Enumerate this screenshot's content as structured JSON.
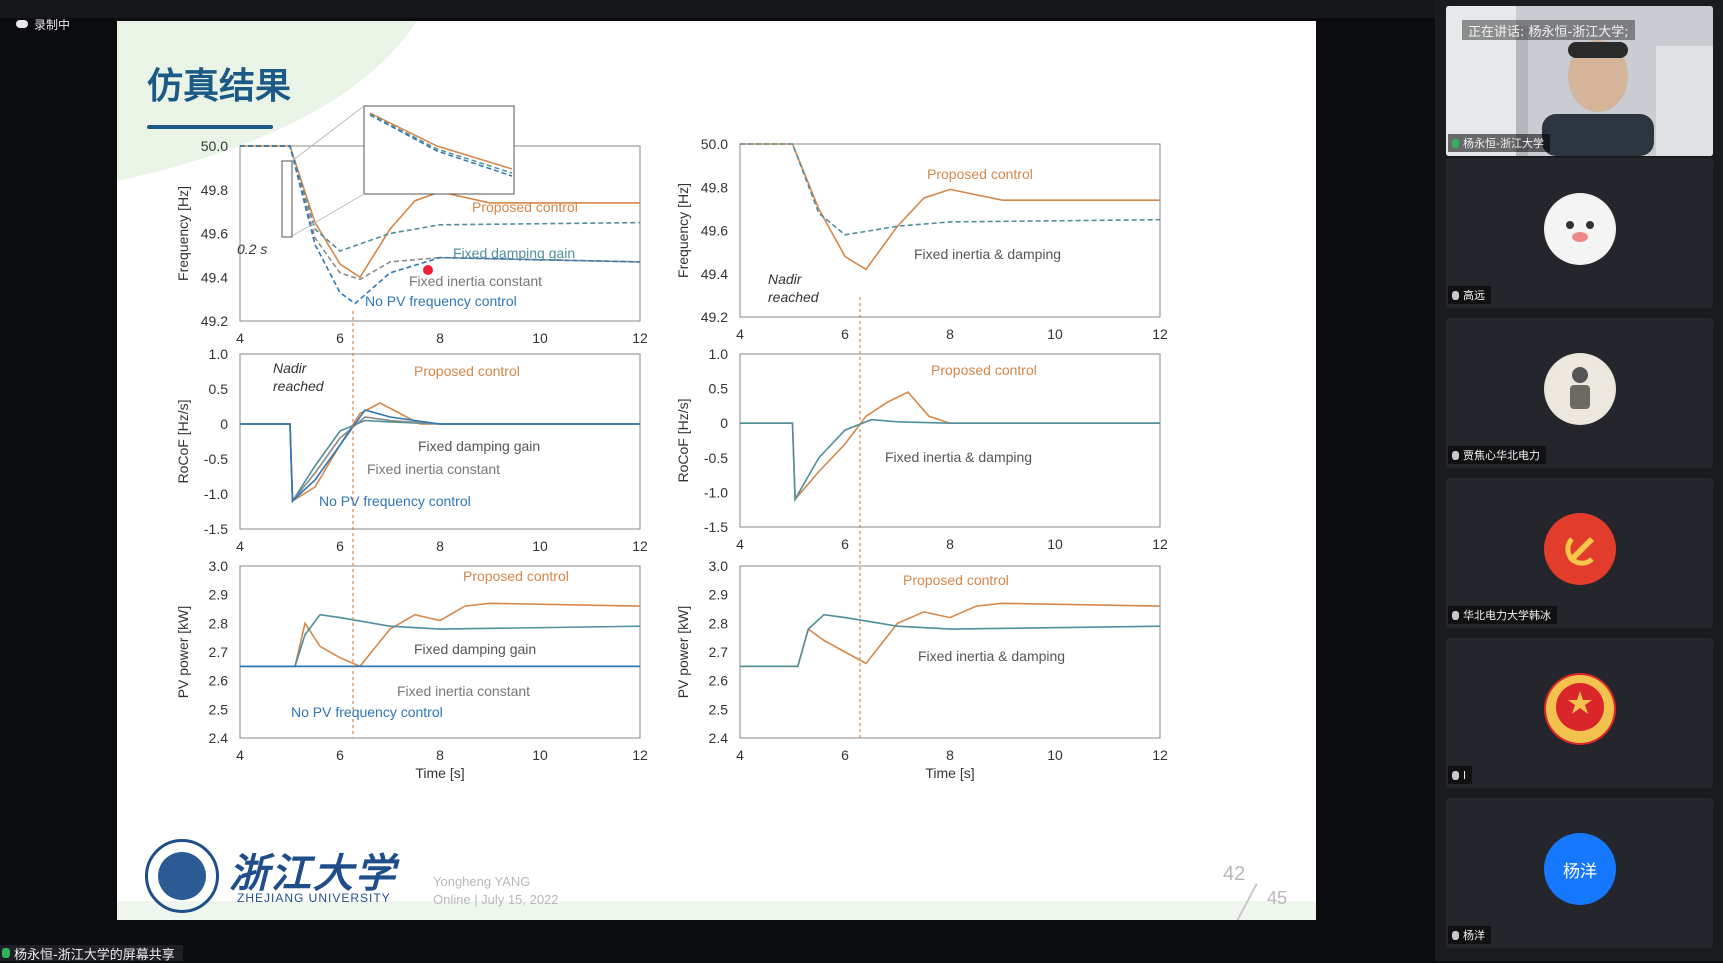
{
  "recording": {
    "label": "录制中"
  },
  "slide": {
    "title": "仿真结果",
    "university_cn": "浙江大学",
    "university_en": "ZHEJIANG UNIVERSITY",
    "author": "Yongheng YANG",
    "event": "Online | July 15, 2022",
    "page": "42",
    "total": "45",
    "left_panel": {
      "freq_ylabel": "Frequency [Hz]",
      "rocof_ylabel": "RoCoF [Hz/s]",
      "pv_ylabel": "PV power [kW]",
      "xlabel": "Time [s]",
      "annot_02s": "0.2 s",
      "nadir_line1": "Nadir",
      "nadir_line2": "reached",
      "proposed": "Proposed control",
      "fixed_damping": "Fixed damping gain",
      "fixed_inertia": "Fixed inertia constant",
      "no_pv": "No PV frequency control"
    },
    "right_panel": {
      "freq_ylabel": "Frequency [Hz]",
      "rocof_ylabel": "RoCoF [Hz/s]",
      "pv_ylabel": "PV power [kW]",
      "xlabel": "Time [s]",
      "nadir_line1": "Nadir",
      "nadir_line2": "reached",
      "proposed": "Proposed control",
      "fixed_both": "Fixed inertia & damping"
    },
    "freq_ticks": [
      "50.0",
      "49.8",
      "49.6",
      "49.4",
      "49.2"
    ],
    "rocof_ticks": [
      "1.0",
      "0.5",
      "0",
      "-0.5",
      "-1.0",
      "-1.5"
    ],
    "pv_ticks": [
      "3.0",
      "2.9",
      "2.8",
      "2.7",
      "2.6",
      "2.5",
      "2.4"
    ],
    "x_ticks": [
      "4",
      "6",
      "8",
      "10",
      "12"
    ]
  },
  "chart_data": [
    {
      "type": "line",
      "title": "",
      "xlabel": "",
      "ylabel": "Frequency [Hz]",
      "xlim": [
        4,
        12
      ],
      "ylim": [
        49.2,
        50.0
      ],
      "series": [
        {
          "name": "Proposed control",
          "x": [
            4,
            5,
            5.5,
            6,
            6.4,
            7,
            7.5,
            8,
            9,
            12
          ],
          "y": [
            50.0,
            50.0,
            49.65,
            49.46,
            49.4,
            49.62,
            49.75,
            49.79,
            49.74,
            49.74
          ]
        },
        {
          "name": "Fixed damping gain",
          "x": [
            4,
            5,
            5.5,
            6,
            6.5,
            7,
            8,
            12
          ],
          "y": [
            50.0,
            50.0,
            49.62,
            49.52,
            49.56,
            49.6,
            49.64,
            49.65
          ]
        },
        {
          "name": "Fixed inertia constant",
          "x": [
            4,
            5,
            5.5,
            6,
            6.4,
            7,
            8,
            12
          ],
          "y": [
            50.0,
            50.0,
            49.58,
            49.42,
            49.39,
            49.47,
            49.49,
            49.47
          ]
        },
        {
          "name": "No PV frequency control",
          "x": [
            4,
            5,
            5.5,
            6,
            6.3,
            7,
            8,
            12
          ],
          "y": [
            50.0,
            50.0,
            49.55,
            49.33,
            49.28,
            49.42,
            49.49,
            49.47
          ]
        }
      ]
    },
    {
      "type": "line",
      "title": "",
      "xlabel": "",
      "ylabel": "RoCoF [Hz/s]",
      "xlim": [
        4,
        12
      ],
      "ylim": [
        -1.5,
        1.0
      ],
      "series": [
        {
          "name": "Proposed control",
          "x": [
            4,
            5,
            5.05,
            5.5,
            6,
            6.4,
            6.8,
            7.2,
            7.6,
            8,
            12
          ],
          "y": [
            0,
            0,
            -1.1,
            -0.9,
            -0.3,
            0.15,
            0.3,
            0.15,
            0.0,
            0.0,
            0.0
          ]
        },
        {
          "name": "Fixed damping gain",
          "x": [
            4,
            5,
            5.05,
            5.5,
            6,
            6.5,
            7,
            8,
            12
          ],
          "y": [
            0,
            0,
            -1.1,
            -0.6,
            -0.1,
            0.05,
            0.03,
            0.0,
            0.0
          ]
        },
        {
          "name": "Fixed inertia constant",
          "x": [
            4,
            5,
            5.05,
            5.5,
            6,
            6.5,
            7,
            8,
            12
          ],
          "y": [
            0,
            0,
            -1.1,
            -0.7,
            -0.2,
            0.1,
            0.05,
            0.0,
            0.0
          ]
        },
        {
          "name": "No PV frequency control",
          "x": [
            4,
            5,
            5.05,
            5.5,
            6,
            6.5,
            7,
            8,
            12
          ],
          "y": [
            0,
            0,
            -1.1,
            -0.8,
            -0.3,
            0.2,
            0.1,
            0.0,
            0.0
          ]
        }
      ]
    },
    {
      "type": "line",
      "title": "",
      "xlabel": "Time [s]",
      "ylabel": "PV power [kW]",
      "xlim": [
        4,
        12
      ],
      "ylim": [
        2.4,
        3.0
      ],
      "series": [
        {
          "name": "Proposed control",
          "x": [
            4,
            5.1,
            5.3,
            5.6,
            6,
            6.4,
            7,
            7.5,
            8,
            8.5,
            9,
            12
          ],
          "y": [
            2.65,
            2.65,
            2.8,
            2.72,
            2.68,
            2.65,
            2.78,
            2.83,
            2.81,
            2.86,
            2.87,
            2.86
          ]
        },
        {
          "name": "Fixed damping gain",
          "x": [
            4,
            5.1,
            5.3,
            5.6,
            6,
            7,
            8,
            12
          ],
          "y": [
            2.65,
            2.65,
            2.76,
            2.83,
            2.82,
            2.79,
            2.78,
            2.79
          ]
        },
        {
          "name": "Fixed inertia constant",
          "x": [
            4,
            12
          ],
          "y": [
            2.65,
            2.65
          ]
        },
        {
          "name": "No PV frequency control",
          "x": [
            4,
            12
          ],
          "y": [
            2.65,
            2.65
          ]
        }
      ]
    },
    {
      "type": "line",
      "title": "",
      "xlabel": "",
      "ylabel": "Frequency [Hz]",
      "xlim": [
        4,
        12
      ],
      "ylim": [
        49.2,
        50.0
      ],
      "series": [
        {
          "name": "Proposed control",
          "x": [
            4,
            5,
            5.5,
            6,
            6.4,
            7,
            7.5,
            8,
            9,
            12
          ],
          "y": [
            50.0,
            50.0,
            49.7,
            49.48,
            49.42,
            49.62,
            49.75,
            49.79,
            49.74,
            49.74
          ]
        },
        {
          "name": "Fixed inertia & damping",
          "x": [
            4,
            5,
            5.5,
            6,
            6.5,
            7,
            8,
            12
          ],
          "y": [
            50.0,
            50.0,
            49.68,
            49.58,
            49.6,
            49.62,
            49.64,
            49.65
          ]
        }
      ]
    },
    {
      "type": "line",
      "title": "",
      "xlabel": "",
      "ylabel": "RoCoF [Hz/s]",
      "xlim": [
        4,
        12
      ],
      "ylim": [
        -1.5,
        1.0
      ],
      "series": [
        {
          "name": "Proposed control",
          "x": [
            4,
            5,
            5.05,
            5.5,
            6,
            6.4,
            6.8,
            7.2,
            7.6,
            8,
            12
          ],
          "y": [
            0,
            0,
            -1.1,
            -0.7,
            -0.3,
            0.1,
            0.3,
            0.45,
            0.1,
            0.0,
            0.0
          ]
        },
        {
          "name": "Fixed inertia & damping",
          "x": [
            4,
            5,
            5.05,
            5.5,
            6,
            6.5,
            7,
            8,
            12
          ],
          "y": [
            0,
            0,
            -1.1,
            -0.5,
            -0.1,
            0.05,
            0.02,
            0.0,
            0.0
          ]
        }
      ]
    },
    {
      "type": "line",
      "title": "",
      "xlabel": "Time [s]",
      "ylabel": "PV power [kW]",
      "xlim": [
        4,
        12
      ],
      "ylim": [
        2.4,
        3.0
      ],
      "series": [
        {
          "name": "Proposed control",
          "x": [
            4,
            5.1,
            5.3,
            5.6,
            6,
            6.4,
            7,
            7.5,
            8,
            8.5,
            9,
            12
          ],
          "y": [
            2.65,
            2.65,
            2.78,
            2.74,
            2.7,
            2.66,
            2.8,
            2.84,
            2.82,
            2.86,
            2.87,
            2.86
          ]
        },
        {
          "name": "Fixed inertia & damping",
          "x": [
            4,
            5.1,
            5.3,
            5.6,
            6,
            7,
            8,
            12
          ],
          "y": [
            2.65,
            2.65,
            2.78,
            2.83,
            2.82,
            2.79,
            2.78,
            2.79
          ]
        }
      ]
    }
  ],
  "right_panel": {
    "speaking_label": "正在讲话: 杨永恒-浙江大学;",
    "participants": [
      {
        "name": "杨永恒-浙江大学",
        "avatar": ""
      },
      {
        "name": "高远",
        "avatar": ""
      },
      {
        "name": "贾焦心华北电力",
        "avatar": ""
      },
      {
        "name": "华北电力大学韩冰",
        "avatar": ""
      },
      {
        "name": "l",
        "avatar": ""
      },
      {
        "name": "杨洋",
        "avatar": "杨洋"
      }
    ]
  },
  "share_bar": {
    "label": "杨永恒-浙江大学的屏幕共享"
  },
  "colors": {
    "proposed": "#d5874a",
    "fixed": "#4f8f9a",
    "inertia": "#8a8a8a",
    "nopv": "#2f76b6",
    "title": "#1b5a86"
  }
}
